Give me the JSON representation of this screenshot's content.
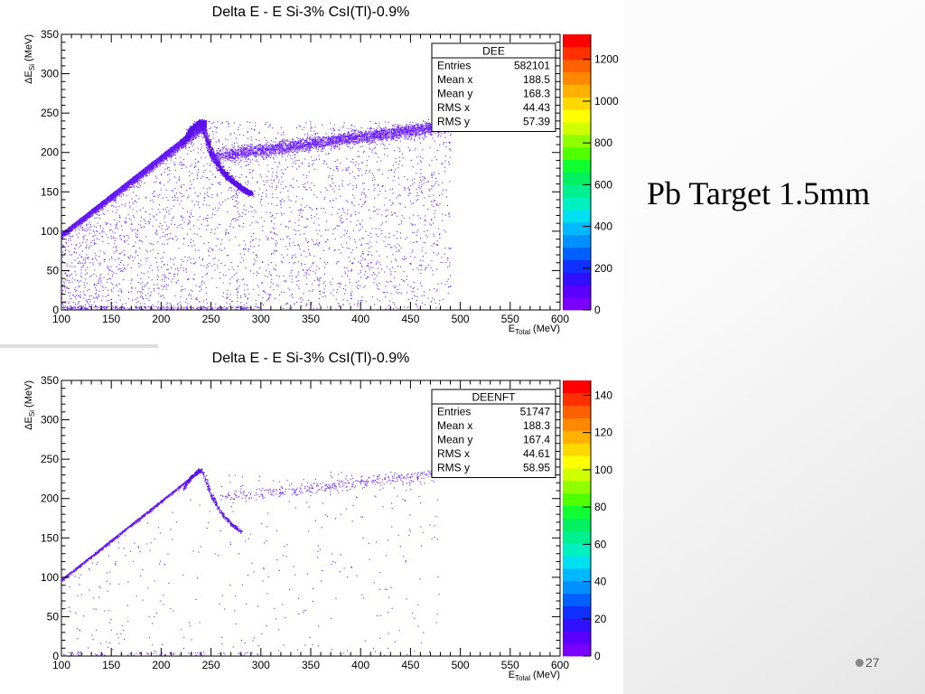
{
  "slide": {
    "title": "Pb Target 1.5mm",
    "page_number": "27"
  },
  "colors": {
    "marker": "#6a1fff",
    "marker_dense": "#5a10e8",
    "palette": [
      "#7a00ff",
      "#5a00ff",
      "#3010ff",
      "#1030ff",
      "#0060ff",
      "#0090ff",
      "#00b8ff",
      "#00e0f0",
      "#00f0c0",
      "#00f090",
      "#00f060",
      "#10ff30",
      "#50ff00",
      "#90ff00",
      "#d0ff00",
      "#ffff00",
      "#ffd800",
      "#ffb000",
      "#ff8800",
      "#ff6000",
      "#ff3000",
      "#ff0000"
    ]
  },
  "chart_data": [
    {
      "type": "heatmap",
      "title": "Delta E - E Si-3% CsI(Tl)-0.9%",
      "xlabel": "E",
      "xlabel_sub": "Total",
      "xlabel_unit": " (MeV)",
      "ylabel": "ΔE",
      "ylabel_sub": "Si",
      "ylabel_unit": " (MeV)",
      "xlim": [
        100,
        600
      ],
      "ylim": [
        0,
        350
      ],
      "x_ticks": [
        100,
        150,
        200,
        250,
        300,
        350,
        400,
        450,
        500,
        550,
        600
      ],
      "y_ticks": [
        0,
        50,
        100,
        150,
        200,
        250,
        300,
        350
      ],
      "z_ticks": [
        0,
        200,
        400,
        600,
        800,
        1000,
        1200
      ],
      "zlim": [
        0,
        1320
      ],
      "legend_placement": "top-right",
      "stats": {
        "name": "DEE",
        "rows": [
          {
            "label": "Entries",
            "value": "582101"
          },
          {
            "label": "Mean x",
            "value": "188.5"
          },
          {
            "label": "Mean y",
            "value": "168.3"
          },
          {
            "label": "RMS x",
            "value": "44.43"
          },
          {
            "label": "RMS y",
            "value": "57.39"
          }
        ]
      },
      "regions": {
        "diagonal_line": {
          "x": [
            100,
            245
          ],
          "y": [
            98,
            242
          ]
        },
        "punch_through_curve": {
          "x": [
            222,
            230,
            240,
            250,
            260,
            270,
            280,
            290
          ],
          "y": [
            212,
            230,
            240,
            200,
            178,
            165,
            155,
            148
          ]
        },
        "plateau": {
          "x": [
            250,
            490
          ],
          "y": [
            195,
            235
          ]
        },
        "diffuse_triangle": {
          "x": [
            100,
            490
          ],
          "y": [
            0,
            240
          ]
        }
      },
      "density": "high"
    },
    {
      "type": "heatmap",
      "title": "Delta E - E Si-3% CsI(Tl)-0.9%",
      "xlabel": "E",
      "xlabel_sub": "Total",
      "xlabel_unit": " (MeV)",
      "ylabel": "ΔE",
      "ylabel_sub": "Si",
      "ylabel_unit": " (MeV)",
      "xlim": [
        100,
        600
      ],
      "ylim": [
        0,
        350
      ],
      "x_ticks": [
        100,
        150,
        200,
        250,
        300,
        350,
        400,
        450,
        500,
        550,
        600
      ],
      "y_ticks": [
        0,
        50,
        100,
        150,
        200,
        250,
        300,
        350
      ],
      "z_ticks": [
        0,
        20,
        40,
        60,
        80,
        100,
        120,
        140
      ],
      "zlim": [
        0,
        148
      ],
      "legend_placement": "top-right",
      "stats": {
        "name": "DEENFT",
        "rows": [
          {
            "label": "Entries",
            "value": "51747"
          },
          {
            "label": "Mean x",
            "value": "188.3"
          },
          {
            "label": "Mean y",
            "value": "167.4"
          },
          {
            "label": "RMS x",
            "value": "44.61"
          },
          {
            "label": "RMS y",
            "value": "58.95"
          }
        ]
      },
      "regions": {
        "diagonal_line": {
          "x": [
            100,
            240
          ],
          "y": [
            98,
            238
          ]
        },
        "punch_through_curve": {
          "x": [
            222,
            230,
            240,
            250,
            260,
            270,
            280
          ],
          "y": [
            212,
            228,
            238,
            205,
            182,
            168,
            158
          ]
        },
        "plateau": {
          "x": [
            255,
            480
          ],
          "y": [
            200,
            232
          ]
        },
        "diffuse_triangle": {
          "x": [
            100,
            480
          ],
          "y": [
            0,
            235
          ]
        }
      },
      "density": "low"
    }
  ]
}
